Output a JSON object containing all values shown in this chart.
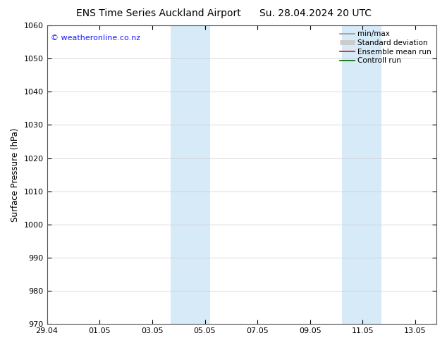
{
  "title": "ENS Time Series Auckland Airport      Su. 28.04.2024 20 UTC",
  "ylabel": "Surface Pressure (hPa)",
  "ylim": [
    970,
    1060
  ],
  "yticks": [
    970,
    980,
    990,
    1000,
    1010,
    1020,
    1030,
    1040,
    1050,
    1060
  ],
  "xtick_labels": [
    "29.04",
    "01.05",
    "03.05",
    "05.05",
    "07.05",
    "09.05",
    "11.05",
    "13.05"
  ],
  "xtick_positions": [
    0,
    2,
    4,
    6,
    8,
    10,
    12,
    14
  ],
  "xlim": [
    0,
    14.8
  ],
  "shaded_bands": [
    {
      "x_start": 4.7,
      "x_end": 6.2
    },
    {
      "x_start": 11.2,
      "x_end": 12.7
    }
  ],
  "shaded_color": "#d6eaf8",
  "watermark": "© weatheronline.co.nz",
  "watermark_color": "#1a1aff",
  "legend_entries": [
    {
      "label": "min/max",
      "color": "#999999",
      "lw": 1.2,
      "type": "line"
    },
    {
      "label": "Standard deviation",
      "color": "#cccccc",
      "lw": 5,
      "type": "thick"
    },
    {
      "label": "Ensemble mean run",
      "color": "#ff0000",
      "lw": 1.2,
      "type": "line"
    },
    {
      "label": "Controll run",
      "color": "#006400",
      "lw": 1.2,
      "type": "line"
    }
  ],
  "bg_color": "#ffffff",
  "grid_color": "#cccccc",
  "title_fontsize": 10,
  "tick_fontsize": 8,
  "ylabel_fontsize": 8.5,
  "watermark_fontsize": 8,
  "legend_fontsize": 7.5
}
